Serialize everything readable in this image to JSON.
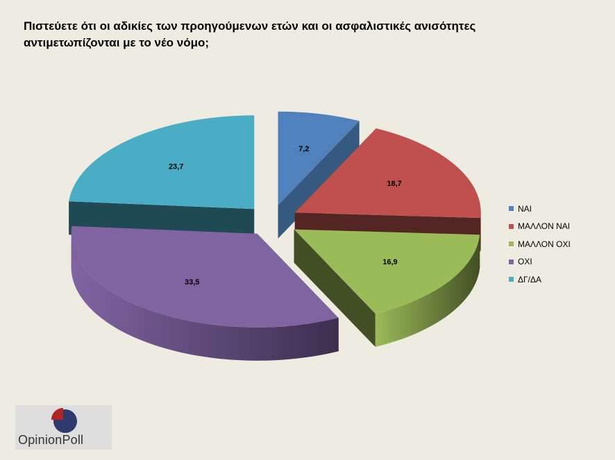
{
  "title": "Πιστεύετε ότι οι αδικίες των προηγούμενων ετών και οι ασφαλιστικές ανισότητες αντιμετωπίζονται  με το νέο νόμο;",
  "chart_data": {
    "type": "pie",
    "title": "Πιστεύετε ότι οι αδικίες των προηγούμενων ετών και οι ασφαλιστικές ανισότητες αντιμετωπίζονται  με το νέο νόμο;",
    "style": "3d-exploded",
    "legend_position": "right",
    "slices": [
      {
        "label": "ΝΑΙ",
        "value": 7.2,
        "value_label": "7,2",
        "color": "#4f81bd",
        "side_color": "#36597f"
      },
      {
        "label": "ΜΑΛΛΟΝ ΝΑΙ",
        "value": 18.7,
        "value_label": "18,7",
        "color": "#c0504d",
        "side_color": "#542623"
      },
      {
        "label": "ΜΑΛΛΟΝ ΟΧΙ",
        "value": 16.9,
        "value_label": "16,9",
        "color": "#9bbb59",
        "side_color": "#424f24"
      },
      {
        "label": "ΟΧΙ",
        "value": 33.5,
        "value_label": "33,5",
        "color": "#8064a2",
        "side_color": "#3c2f4e"
      },
      {
        "label": "ΔΓ/ΔΑ",
        "value": 23.7,
        "value_label": "23,7",
        "color": "#4bacc6",
        "side_color": "#1f4a54"
      }
    ]
  },
  "logo": {
    "text": "OpinionPoll"
  }
}
